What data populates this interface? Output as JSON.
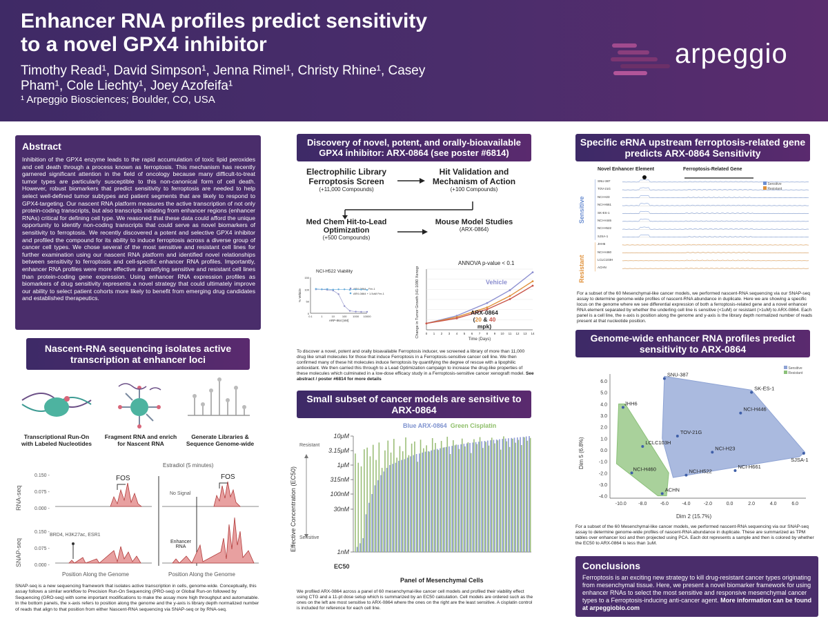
{
  "header": {
    "title": "Enhancer RNA profiles predict sensitivity to a novel GPX4 inhibitor",
    "authors": "Timothy Read¹, David Simpson¹, Jenna Rimel¹, Christy Rhine¹, Casey Pham¹, Cole Liechty¹, Joey Azofeifa¹",
    "affiliation": "¹ Arpeggio Biosciences; Boulder, CO, USA",
    "logo_text": "arpeggio"
  },
  "abstract": {
    "heading": "Abstract",
    "text": "Inhibition of the GPX4 enzyme leads to the rapid accumulation of toxic lipid peroxides and cell death through a process known as ferroptosis. This mechanism has recently garnered significant attention in the field of oncology because many difficult-to-treat tumor types are particularly susceptible to this non-canonical form of cell death. However, robust biomarkers that predict sensitivity to ferroptosis are needed to help select well-defined tumor subtypes and patient segments that are likely to respond to GPX4-targeting. Our nascent RNA platform measures the active transcription of not only protein-coding transcripts, but also transcripts initiating from enhancer regions (enhancer RNAs) critical for defining cell type. We reasoned that these data could afford the unique opportunity to identify non-coding transcripts that could serve as novel biomarkers of sensitivity to ferroptosis. We recently discovered a potent and selective GPX4 inhibitor and profiled the compound for its ability to induce ferroptosis across a diverse group of cancer cell types. We chose several of the most sensitive and resistant cell lines for further examination using our nascent RNA platform and identified novel relationships between sensitivity to ferroptosis and cell-specific enhancer RNA profiles. Importantly, enhancer RNA profiles were more effective at stratifying sensitive and resistant cell lines than protein-coding gene expression. Using enhancer RNA expression profiles as biomarkers of drug sensitivity represents a novel strategy that could ultimately improve our ability to select patient cohorts more likely to benefit from emerging drug candidates and established therapeutics."
  },
  "nascent": {
    "title": "Nascent-RNA sequencing isolates active transcription at enhancer loci",
    "step1": "Transcriptional Run-On with Labeled Nucleotides",
    "step2": "Fragment RNA and enrich for Nascent RNA",
    "step3": "Generate Libraries & Sequence Genome-wide",
    "estradiol": "Estradiol (5 minutes)",
    "rnaseq": "RNA-seq",
    "snapseq": "SNAP-seq",
    "fos1": "FOS",
    "fos2": "FOS",
    "nosignal": "No Signal",
    "enhancer": "Enhancer RNA",
    "brd4": "BRD4, H3K27ac, ESR1",
    "ticks_rna": [
      "0.150 -",
      "0.075 -",
      "0.000 -"
    ],
    "ticks_snap": [
      "0.150 -",
      "0.075 -",
      "0.000 -"
    ],
    "xlabel1": "Position Along the Genome",
    "xlabel2": "Position Along the Genome",
    "caption": "SNAP-seq is a new sequencing framework that isolates active transcription in cells, genome-wide. Conceptually, this assay follows a similar workflow to Precision Run-On Sequencing (PRO-seq) or Global Run-on followed by Sequencing (GRO-seq) with some important modifications to make the assay more high throughput and automatable. In the bottom panels, the x-axis refers to position along the genome and the y-axis is library depth normalized number of reads that align to that position from either Nascent-RNA sequencing via SNAP-seq or by RNA-seq."
  },
  "discovery": {
    "title": "Discovery of novel, potent, and orally-bioavailable GPX4 inhibitor: ARX-0864 (see poster #6814)",
    "box1_title": "Electrophilic Library Ferroptosis Screen",
    "box1_sub": "(+11,000 Compounds)",
    "box2_title": "Hit Validation and Mechanism of Action",
    "box2_sub": "(+100 Compounds)",
    "box3_title": "Med Chem Hit-to-Lead Optimization",
    "box3_sub": "(+500 Compounds)",
    "box4_title": "Mouse Model Studies",
    "box4_sub": "(ARX-0864)",
    "viab_title": "NCI-H522 Viability",
    "viab_legend1": "ARX-0864 - Fer-1",
    "viab_legend2": "ARX-0864 + 1.5uM Fer-1",
    "viab_ylabel": "% Vehicle",
    "viab_xlabel": "ARP-864 [nM]",
    "viab_yticks": [
      "150",
      "100",
      "50",
      "0"
    ],
    "viab_xticks": [
      "0.1",
      "1",
      "10",
      "100",
      "1000",
      "10000"
    ],
    "anova": "ANNOVA p-value < 0.1",
    "vehicle": "Vehicle",
    "arx_label": "ARX-0864",
    "dose_a": "20",
    "dose_amp": " & ",
    "dose_b": "40",
    "dose_unit": " mpk)",
    "dose_open": "(",
    "growth_ylabel": "Change in Tumor Growth (H1-1080 Xenograft)",
    "growth_xlabel": "Time (Days)",
    "growth_xticks": [
      "0",
      "1",
      "2",
      "3",
      "4",
      "5",
      "6",
      "7",
      "8",
      "9",
      "10",
      "11",
      "12",
      "13",
      "14"
    ],
    "caption": "To discover a novel, potent and orally bioavailable Ferroptosis inducer, we screened a library of more than 11,000 drug like small molecules for those that induce Ferroptosis in a Ferroptosis-sensitive cancer cell line. We then confirmed many of these hit molecules induce ferroptosis by quantifying the degree of rescue with a lipophilic antioxidant. We then carried this through to a Lead Optimization campaign to increase the drug-like properties of these molecules which culminated in a low-dose efficacy study in a Ferroptosis-sensitive cancer xenograft model.",
    "caption_bold": "See abstract / poster #6814 for more details"
  },
  "small_subset": {
    "title": "Small subset of cancer models are sensitive to ARX-0864",
    "legend_blue": "Blue ARX-0864",
    "legend_green": "Green Cisplatin",
    "resistant": "Resistant",
    "sensitive": "Sensitive",
    "ylabel": "Effective Concentration (EC50)",
    "yticks": [
      "10μM",
      "3.15μM",
      "1μM",
      "315nM",
      "100nM",
      "30nM",
      "1nM"
    ],
    "ec50": "EC50",
    "xlabel": "Panel of Mesenchymal Cells",
    "caption": "We profiled ARX-0864 across a panel of 60 mesenchymal-like cancer cell models and profiled their viability effect using CTG and a 11-pt dose setup which is summarized by an EC50 calculation. Cell models are ordered such as the ones on the left are most sensitive to ARX-0864 where the ones on the right are the least sensitive. A cisplatin control is included for reference for each cell line."
  },
  "erna": {
    "title": "Specific eRNA upstream ferroptosis-related gene predicts ARX-0864 Sensitivity",
    "novel": "Novel Enhancer Element",
    "ferro": "Ferroptosis-Related Gene",
    "sensitive": "Sensitive",
    "resistant": "Resistant",
    "legend_sens": "Sensitive",
    "legend_res": "Resistant",
    "tracks": [
      "SNU-387",
      "TOV-21G",
      "NCI-H23",
      "NCI-H661",
      "SK-ES-1",
      "NCI-H446",
      "NCI-H522",
      "SJSA-1",
      "JHH6",
      "NCI-H460",
      "LCLC103H",
      "ACHN"
    ],
    "caption": "For a subset of the 60 Mesenchymal-like cancer models, we performed nascent-RNA sequencing via our SNAP-seq assay to determine genome-wide profiles of nascent-RNA abundance in duplicate. Here we are showing a specific locus on the genome where we see differential expression of both a ferroptosis-related gene and a novel enhancer RNA element separated by whether the underling cell line is sensitive (<1uM) or resistant (>1uM) to ARX-0864. Each panel is a cell line, the x-axis is position along the genome and y-axis is the library depth normalized number of reads present at that nucleotide position."
  },
  "pca": {
    "title": "Genome-wide enhancer RNA profiles predict sensitivity to ARX-0864",
    "legend_sens": "Sensitive",
    "legend_res": "Resistant",
    "ylabel": "Dim 5 (6.8%)",
    "xlabel": "Dim 2 (15.7%)",
    "yticks": [
      "6.0",
      "5.0",
      "4.0",
      "3.0",
      "2.0",
      "1.0",
      "0.0",
      "-1.0",
      "-2.0",
      "-3.0",
      "-4.0"
    ],
    "xticks": [
      "-10.0",
      "-8.0",
      "-6.0",
      "-4.0",
      "-2.0",
      "0.0",
      "2.0",
      "4.0",
      "6.0"
    ],
    "caption": "For a subset of the 60 Mesenchymal-like cancer models, we performed nascent-RNA sequencing via our SNAP-seq assay to determine genome-wide profiles of nascent-RNA abundance in duplicate. These are summarized as TPM tables over enhancer loci and then projected using PCA. Each dot represents a sample and then is colored by whether the EC50 to ARX-0864 is less than 1uM."
  },
  "conclusions": {
    "heading": "Conclusions",
    "text": "Ferroptosis is an exciting new strategy to kill drug-resistant cancer types originating from mesenchymal tissue. Here, we present a novel biomarker framework for using enhancer RNAs to select the most sensitive and responsive mesenchymal cancer types to a Ferroptosis-inducing anti-cancer agent.",
    "bold": "More information can be found at arpeggiobio.com"
  },
  "chart_data": [
    {
      "type": "scatter",
      "title": "NCI-H522 Viability",
      "xlabel": "ARP-864 [nM]",
      "ylabel": "% Vehicle",
      "xscale": "log",
      "xlim": [
        0.1,
        10000
      ],
      "ylim": [
        0,
        150
      ],
      "series": [
        {
          "name": "ARX-0864 - Fer-1",
          "x": [
            0.3,
            1,
            3,
            10,
            30,
            100,
            300,
            1000,
            3000,
            10000
          ],
          "y": [
            100,
            100,
            98,
            95,
            80,
            30,
            10,
            7,
            6,
            6
          ]
        },
        {
          "name": "ARX-0864 + 1.5uM Fer-1",
          "x": [
            0.3,
            1,
            3,
            10,
            30,
            100,
            300,
            1000,
            3000,
            10000
          ],
          "y": [
            102,
            100,
            101,
            99,
            100,
            100,
            98,
            100,
            99,
            98
          ]
        }
      ]
    },
    {
      "type": "line",
      "title": "ANNOVA p-value < 0.1",
      "xlabel": "Time (Days)",
      "ylabel": "Change in Tumor Growth (H1-1080 Xenograft)",
      "x": [
        0,
        4,
        8,
        11,
        14
      ],
      "series": [
        {
          "name": "Vehicle",
          "values": [
            1,
            2.2,
            4.2,
            6.2,
            9.0
          ],
          "color": "#8c8fd0"
        },
        {
          "name": "ARX-0864 20 mpk",
          "values": [
            1,
            2.0,
            3.5,
            5.3,
            7.6
          ],
          "color": "#e0913a"
        },
        {
          "name": "ARX-0864 40 mpk",
          "values": [
            1,
            1.8,
            3.2,
            4.8,
            6.9
          ],
          "color": "#c9554a"
        }
      ]
    },
    {
      "type": "bar",
      "title": "",
      "xlabel": "Panel of Mesenchymal Cells",
      "ylabel": "Effective Concentration (EC50)",
      "yscale": "log",
      "series": [
        {
          "name": "Blue ARX-0864",
          "values": [
            0.001,
            0.0015,
            0.002,
            0.003,
            0.02,
            0.05,
            0.1,
            0.2,
            0.3,
            0.45,
            0.6,
            0.8,
            1.0,
            1.1,
            1.2,
            1.4,
            1.5,
            1.6,
            1.8,
            2.0,
            2.2,
            2.4,
            2.5,
            2.7,
            2.9,
            3.0,
            3.2,
            3.4,
            3.6,
            3.8,
            4.0,
            4.2,
            4.4,
            4.6,
            4.8,
            5.0,
            5.2,
            5.4,
            5.6,
            5.8,
            6.0,
            6.2,
            6.4,
            6.6,
            6.8,
            7.0,
            7.2,
            7.4,
            7.6,
            7.8,
            8.0,
            8.2,
            8.4,
            8.6,
            8.8,
            9.0,
            9.2,
            9.4,
            9.7,
            10.0
          ],
          "color": "#8e9bd6"
        },
        {
          "name": "Green Cisplatin",
          "values": [
            2.5,
            1.2,
            0.9,
            3.5,
            4.0,
            2.0,
            5.0,
            1.5,
            6.0,
            0.8,
            3.2,
            7.0,
            2.7,
            8.0,
            1.8,
            4.5,
            3.0,
            9.0,
            2.2,
            5.5,
            6.5,
            1.3,
            7.5,
            3.8,
            4.8,
            2.9,
            8.5,
            5.8,
            3.3,
            6.8,
            4.1,
            9.5,
            2.4,
            7.2,
            5.1,
            3.6,
            8.2,
            4.4,
            6.1,
            2.6,
            7.8,
            5.3,
            9.2,
            3.9,
            6.3,
            4.7,
            8.8,
            5.6,
            7.1,
            3.4,
            9.8,
            6.6,
            4.2,
            8.1,
            5.9,
            7.4,
            4.9,
            9.1,
            6.9,
            8.6
          ],
          "color": "#9dbf7a"
        }
      ]
    },
    {
      "type": "scatter",
      "title": "",
      "xlabel": "Dim 2 (15.7%)",
      "ylabel": "Dim 5 (6.8%)",
      "xlim": [
        -11,
        7
      ],
      "ylim": [
        -4.2,
        6.6
      ],
      "series": [
        {
          "name": "Sensitive",
          "color": "#8ea3d4",
          "points": [
            {
              "label": "SNU-387",
              "x": -6.0,
              "y": 6.2
            },
            {
              "label": "SK-ES-1",
              "x": 2.0,
              "y": 5.0
            },
            {
              "label": "NCI-H446",
              "x": 1.0,
              "y": 3.2
            },
            {
              "label": "TOV-21G",
              "x": -4.8,
              "y": 1.2
            },
            {
              "label": "NCI-H23",
              "x": -1.6,
              "y": -0.2
            },
            {
              "label": "NCI-H661",
              "x": 0.5,
              "y": -1.8
            },
            {
              "label": "NCI-H522",
              "x": -4.0,
              "y": -2.2
            },
            {
              "label": "SJSA-1",
              "x": 6.8,
              "y": -0.3
            }
          ]
        },
        {
          "name": "Resistant",
          "color": "#8cc17a",
          "points": [
            {
              "label": "JHH6",
              "x": -9.8,
              "y": 3.7
            },
            {
              "label": "LCLC103H",
              "x": -8.0,
              "y": 0.3
            },
            {
              "label": "NCI-H460",
              "x": -9.0,
              "y": -2.0
            },
            {
              "label": "ACHN",
              "x": -6.2,
              "y": -3.8
            }
          ]
        }
      ]
    }
  ]
}
